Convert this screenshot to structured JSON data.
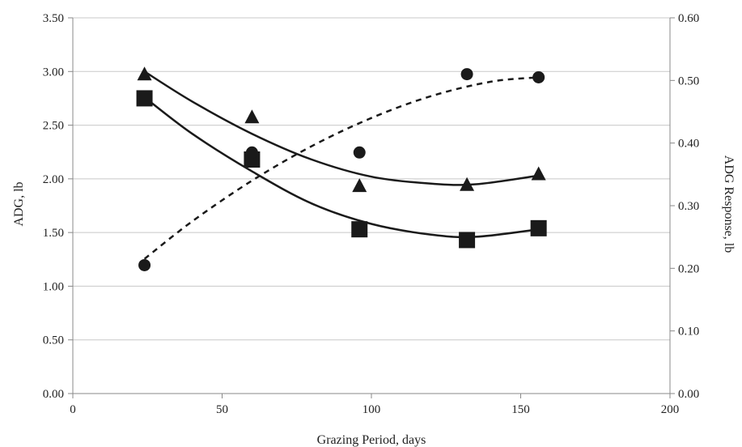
{
  "chart_data": {
    "type": "scatter",
    "title": "",
    "xlabel": "Grazing Period, days",
    "ylabel": "ADG, lb",
    "y2label": "ADG Response, lb",
    "xlim": [
      0,
      200
    ],
    "ylim": [
      0,
      3.5
    ],
    "y2lim": [
      0,
      0.6
    ],
    "x_ticks": [
      "0",
      "50",
      "100",
      "150",
      "200"
    ],
    "y_ticks": [
      "0.00",
      "0.50",
      "1.00",
      "1.50",
      "2.00",
      "2.50",
      "3.00",
      "3.50"
    ],
    "y2_ticks": [
      "0.00",
      "0.10",
      "0.20",
      "0.30",
      "0.40",
      "0.50",
      "0.60"
    ],
    "grid": "horizontal",
    "legend": "none",
    "series": [
      {
        "marker": "triangle",
        "axis": "left",
        "color": "#1a1a1a",
        "x": [
          24,
          60,
          96,
          132,
          156
        ],
        "y": [
          2.97,
          2.57,
          1.93,
          1.94,
          2.04
        ],
        "trend": {
          "style": "solid",
          "x": [
            24,
            40,
            60,
            80,
            100,
            120,
            135,
            156
          ],
          "y": [
            3.0,
            2.72,
            2.42,
            2.18,
            2.02,
            1.955,
            1.95,
            2.03
          ]
        }
      },
      {
        "marker": "square",
        "axis": "left",
        "color": "#1a1a1a",
        "x": [
          24,
          60,
          96,
          132,
          156
        ],
        "y": [
          2.75,
          2.18,
          1.53,
          1.43,
          1.54
        ],
        "trend": {
          "style": "solid",
          "x": [
            24,
            40,
            60,
            80,
            100,
            120,
            135,
            156
          ],
          "y": [
            2.76,
            2.42,
            2.07,
            1.77,
            1.58,
            1.48,
            1.46,
            1.53
          ]
        }
      },
      {
        "marker": "circle",
        "axis": "right",
        "color": "#1a1a1a",
        "x": [
          24,
          60,
          96,
          132,
          156
        ],
        "y": [
          0.205,
          0.385,
          0.385,
          0.51,
          0.505
        ],
        "trend": {
          "style": "dashed",
          "x": [
            24,
            40,
            60,
            80,
            100,
            120,
            140,
            156
          ],
          "y": [
            0.215,
            0.275,
            0.34,
            0.395,
            0.44,
            0.475,
            0.498,
            0.505
          ]
        }
      }
    ]
  }
}
